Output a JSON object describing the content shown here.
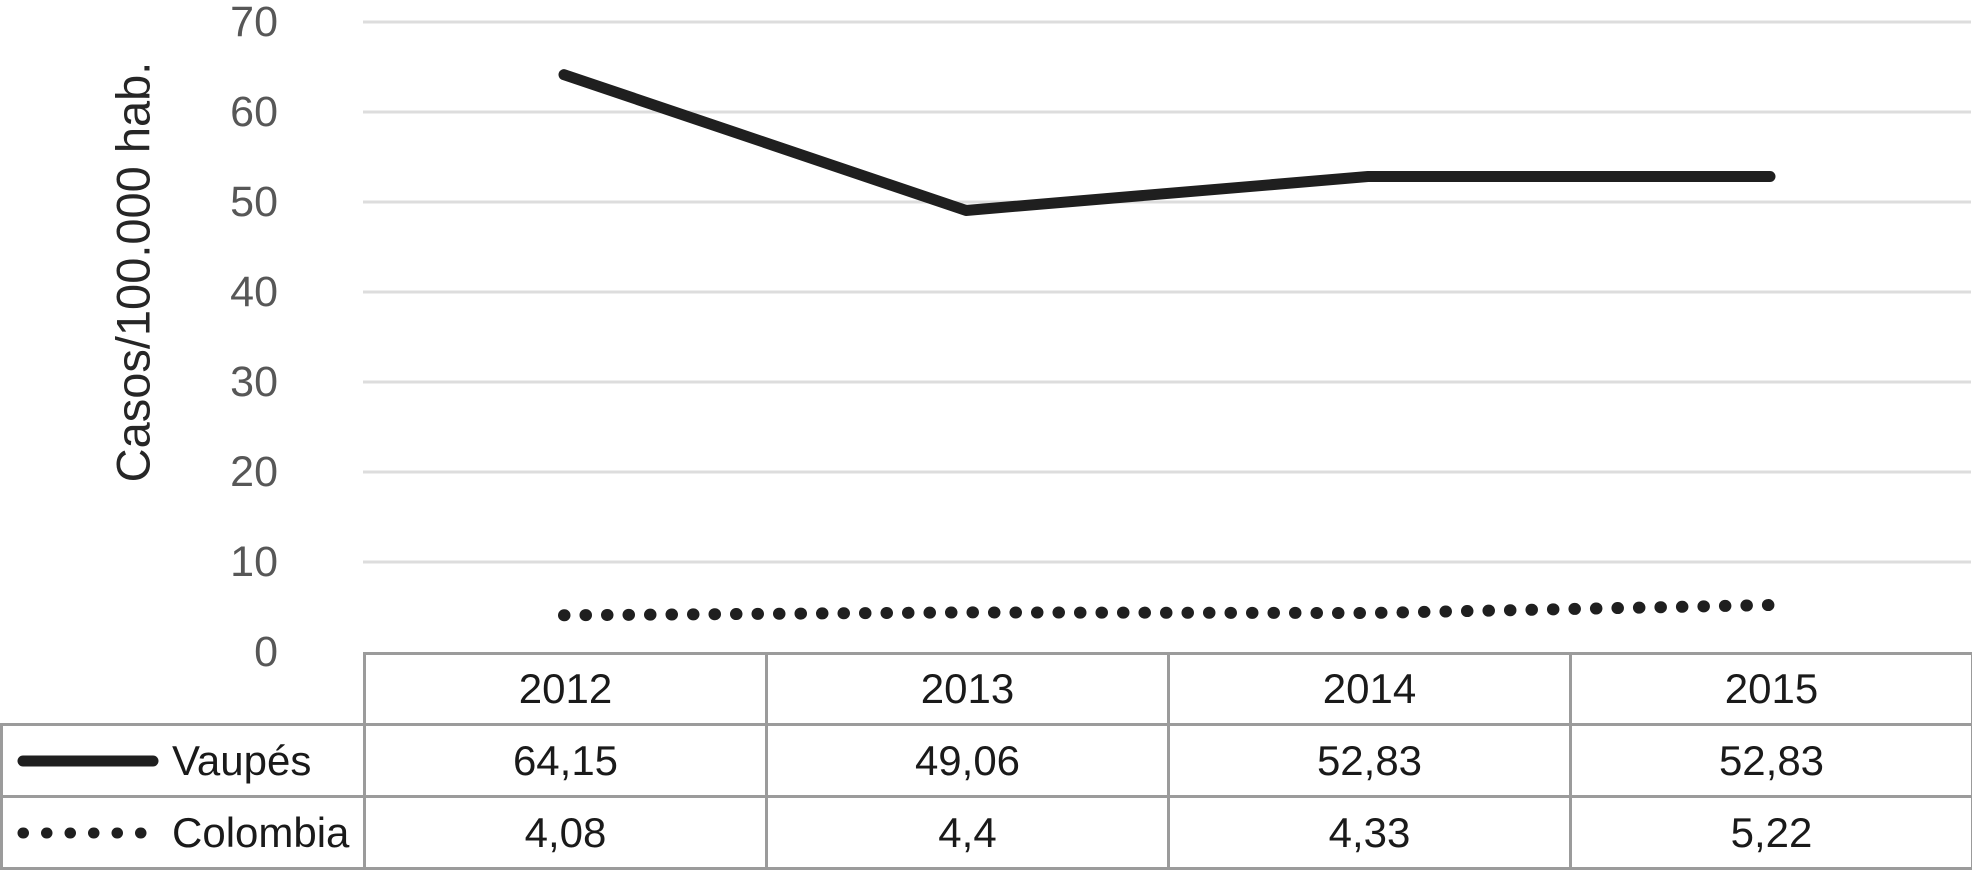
{
  "chart_data": {
    "type": "line",
    "title": "",
    "ylabel": "Casos/100.000 hab.",
    "xlabel": "",
    "categories": [
      "2012",
      "2013",
      "2014",
      "2015"
    ],
    "series": [
      {
        "name": "Vaupés",
        "line_style": "solid",
        "values": [
          64.15,
          49.06,
          52.83,
          52.83
        ],
        "display_values": [
          "64,15",
          "49,06",
          "52,83",
          "52,83"
        ]
      },
      {
        "name": "Colombia",
        "line_style": "dotted",
        "values": [
          4.08,
          4.4,
          4.33,
          5.22
        ],
        "display_values": [
          "4,08",
          "4,4",
          "4,33",
          "5,22"
        ]
      }
    ],
    "y_axis": {
      "min": 0,
      "max": 70,
      "step": 10,
      "tick_labels": [
        "0",
        "10",
        "20",
        "30",
        "40",
        "50",
        "60",
        "70"
      ]
    },
    "grid": "horizontal-only",
    "legend_position": "data-table-left",
    "colors": {
      "series_line": "#1f1f1f",
      "gridline": "#dddddd",
      "table_border": "#9b9b9b",
      "tick_label": "#575757",
      "text": "#1a1a1a",
      "background": "#ffffff"
    }
  }
}
